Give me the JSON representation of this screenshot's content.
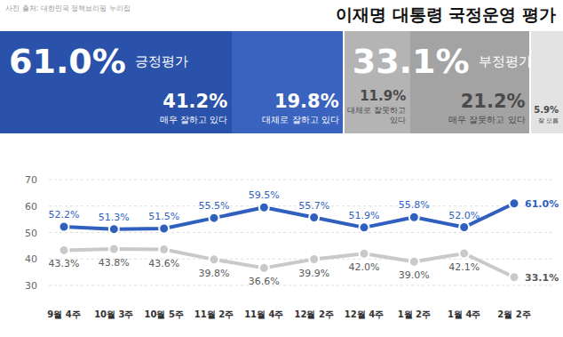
{
  "chart_data": [
    {
      "type": "bar",
      "title": "이재명 대통령 국정운영 평가",
      "source": "사진 출처: 대한민국 정책브리핑 누리집",
      "orientation": "horizontal",
      "stacked": true,
      "data_labels": true,
      "tick_labels": false,
      "categories": [
        null
      ],
      "xlim": [
        0,
        100
      ],
      "series": [
        {
          "name": "매우 잘하고 있다",
          "color": "#2a52ab",
          "values": [
            41.2
          ],
          "value_labels": [
            "41.2%"
          ]
        },
        {
          "name": "대체로 잘하고 있다",
          "color": "#3a63bf",
          "values": [
            19.8
          ],
          "value_labels": [
            "19.8%"
          ]
        },
        {
          "name": "대체로 잘못하고 있다",
          "color": "#b4b4b4",
          "values": [
            11.9
          ],
          "value_labels": [
            "11.9%"
          ]
        },
        {
          "name": "매우 잘못하고 있다",
          "color": "#a3a3a3",
          "values": [
            21.2
          ],
          "value_labels": [
            "21.2%"
          ]
        },
        {
          "name": "잘 모름",
          "color": "#e3e3e3",
          "values": [
            5.9
          ],
          "value_labels": [
            "5.9%"
          ]
        }
      ],
      "groups": [
        {
          "name": "긍정평가",
          "value": 61.0,
          "label": "61.0%"
        },
        {
          "name": "부정평가",
          "value": 33.1,
          "label": "33.1%"
        }
      ]
    },
    {
      "type": "line",
      "categories": [
        "9월 4주",
        "10월 3주",
        "10월 5주",
        "11월 2주",
        "11월 4주",
        "12월 2주",
        "12월 4주",
        "1월 2주",
        "1월 4주",
        "2월 2주"
      ],
      "ylim": [
        30,
        70
      ],
      "yticks": [
        30,
        40,
        50,
        60,
        70
      ],
      "grid": true,
      "data_labels": true,
      "series": [
        {
          "color": "#2f5fbf",
          "marker": "circle",
          "line_style": "solid",
          "values": [
            52.2,
            51.3,
            51.5,
            55.5,
            59.5,
            55.7,
            51.9,
            55.8,
            52.0,
            61.0
          ],
          "value_labels": [
            "52.2%",
            "51.3%",
            "51.5%",
            "55.5%",
            "59.5%",
            "55.7%",
            "51.9%",
            "55.8%",
            "52.0%",
            "61.0%"
          ]
        },
        {
          "color": "#c9c9c9",
          "marker": "circle",
          "line_style": "solid",
          "values": [
            43.3,
            43.8,
            43.6,
            39.8,
            36.6,
            39.9,
            42.0,
            39.0,
            42.1,
            33.1
          ],
          "value_labels": [
            "43.3%",
            "43.8%",
            "43.6%",
            "39.8%",
            "36.6%",
            "39.9%",
            "42.0%",
            "39.0%",
            "42.1%",
            "33.1%"
          ]
        }
      ]
    }
  ]
}
